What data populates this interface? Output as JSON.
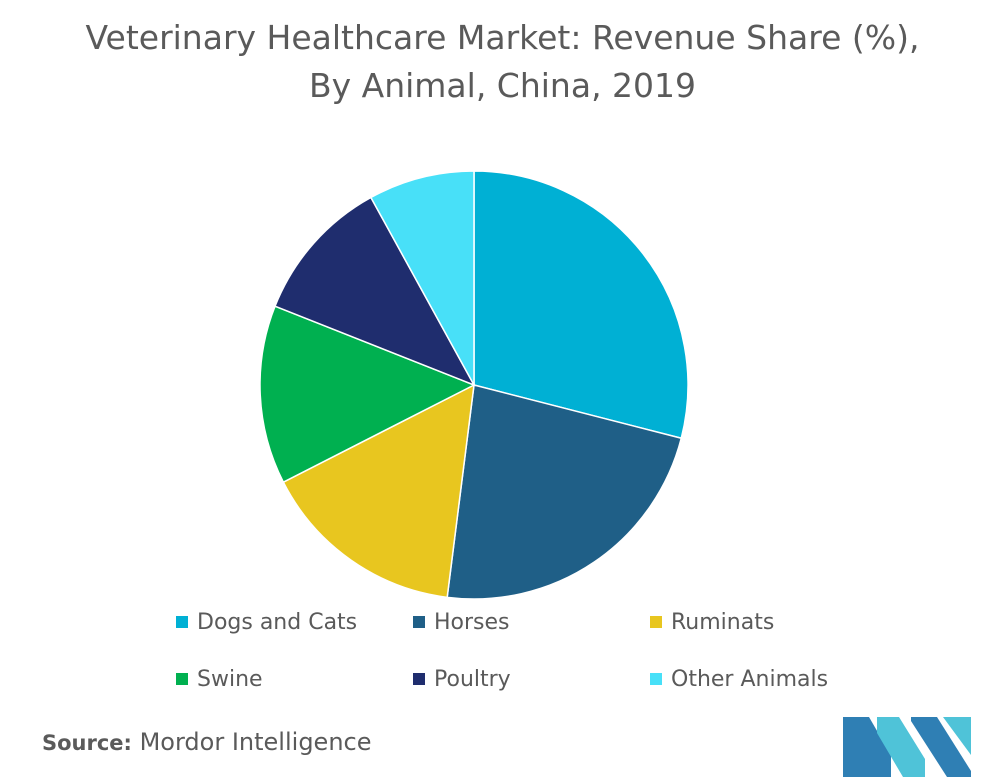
{
  "title": {
    "line1": "Veterinary Healthcare Market: Revenue Share (%),",
    "line2": "By Animal, China, 2019"
  },
  "chart_data": {
    "type": "pie",
    "title": "Veterinary Healthcare Market: Revenue Share (%), By Animal, China, 2019",
    "categories": [
      "Dogs and Cats",
      "Horses",
      "Ruminats",
      "Swine",
      "Poultry",
      "Other Animals"
    ],
    "values": [
      29,
      23,
      15.5,
      13.5,
      11,
      8
    ],
    "colors": [
      "#00b0d4",
      "#1f5f87",
      "#e8c61f",
      "#00b050",
      "#1f2d6e",
      "#48e0f8"
    ],
    "legend_position": "bottom",
    "start_angle_deg": 0,
    "direction": "clockwise"
  },
  "source": {
    "label": "Source:",
    "text": "Mordor Intelligence"
  },
  "logo": {
    "colors": [
      "#2f7fb4",
      "#4fc3d8"
    ]
  }
}
